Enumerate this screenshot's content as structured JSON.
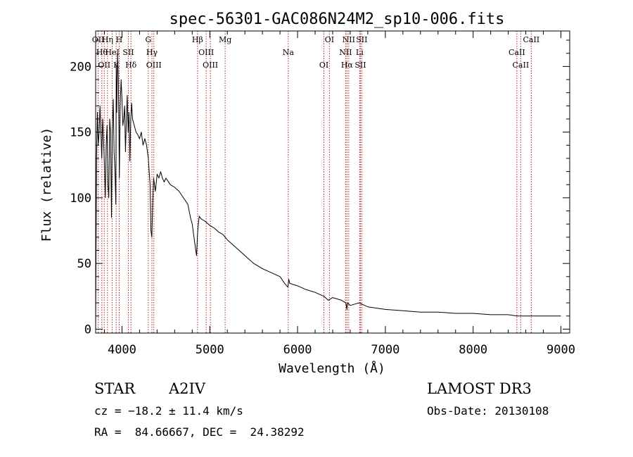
{
  "chart_data": {
    "type": "line",
    "title": "spec-56301-GAC086N24M2_sp10-006.fits",
    "xlabel": "Wavelength (Å)",
    "ylabel": "Flux (relative)",
    "xlim": [
      3700,
      9100
    ],
    "ylim": [
      -3,
      227
    ],
    "xticks": [
      4000,
      5000,
      6000,
      7000,
      8000,
      9000
    ],
    "yticks": [
      0,
      50,
      100,
      150,
      200
    ],
    "xtick_labels": [
      "4000",
      "5000",
      "6000",
      "7000",
      "8000",
      "9000"
    ],
    "ytick_labels": [
      "0",
      "50",
      "100",
      "150",
      "200"
    ],
    "series": [
      {
        "name": "spectrum",
        "x": [
          3700,
          3710,
          3720,
          3730,
          3740,
          3750,
          3760,
          3770,
          3780,
          3790,
          3800,
          3810,
          3820,
          3830,
          3840,
          3850,
          3860,
          3870,
          3880,
          3890,
          3900,
          3910,
          3920,
          3930,
          3935,
          3940,
          3950,
          3960,
          3970,
          3980,
          3990,
          4000,
          4010,
          4020,
          4030,
          4040,
          4050,
          4060,
          4070,
          4080,
          4090,
          4100,
          4110,
          4120,
          4140,
          4160,
          4180,
          4200,
          4220,
          4240,
          4260,
          4280,
          4300,
          4310,
          4320,
          4330,
          4340,
          4350,
          4360,
          4380,
          4400,
          4420,
          4440,
          4460,
          4480,
          4500,
          4550,
          4600,
          4650,
          4700,
          4750,
          4780,
          4800,
          4820,
          4840,
          4850,
          4860,
          4870,
          4880,
          4900,
          4950,
          5000,
          5050,
          5100,
          5150,
          5200,
          5300,
          5400,
          5500,
          5600,
          5700,
          5800,
          5850,
          5890,
          5900,
          5910,
          5950,
          6000,
          6100,
          6200,
          6300,
          6350,
          6400,
          6500,
          6550,
          6562,
          6570,
          6600,
          6700,
          6800,
          6900,
          7000,
          7200,
          7400,
          7600,
          7800,
          8000,
          8200,
          8400,
          8500,
          8600,
          8700,
          8800,
          8900,
          9000
        ],
        "y": [
          0,
          130,
          165,
          140,
          150,
          170,
          150,
          130,
          160,
          145,
          125,
          100,
          140,
          155,
          110,
          100,
          160,
          150,
          85,
          150,
          175,
          135,
          120,
          95,
          200,
          165,
          210,
          185,
          115,
          170,
          190,
          175,
          155,
          160,
          170,
          135,
          160,
          178,
          150,
          165,
          128,
          160,
          172,
          160,
          155,
          150,
          148,
          145,
          150,
          140,
          145,
          140,
          130,
          120,
          110,
          75,
          70,
          95,
          115,
          105,
          118,
          115,
          120,
          115,
          112,
          115,
          110,
          108,
          105,
          100,
          95,
          85,
          80,
          70,
          60,
          56,
          72,
          80,
          86,
          84,
          82,
          79,
          77,
          74,
          72,
          68,
          62,
          56,
          50,
          46,
          43,
          40,
          35,
          32,
          38,
          35,
          34,
          33,
          30,
          28,
          25,
          22,
          24,
          22,
          20,
          15,
          20,
          18,
          20,
          17,
          16,
          15,
          14,
          13,
          13,
          12,
          12,
          11,
          11,
          10,
          10,
          10,
          10,
          10,
          10
        ]
      }
    ],
    "line_ids": [
      {
        "wavelength": 3729,
        "label": "OII"
      },
      {
        "wavelength": 3771,
        "label": "Hθ"
      },
      {
        "wavelength": 3798,
        "label": "OII"
      },
      {
        "wavelength": 3835,
        "label": "Hη"
      },
      {
        "wavelength": 3889,
        "label": "HeI"
      },
      {
        "wavelength": 3934,
        "label": "K"
      },
      {
        "wavelength": 3968,
        "label": "H"
      },
      {
        "wavelength": 4072,
        "label": "SII"
      },
      {
        "wavelength": 4102,
        "label": "Hδ"
      },
      {
        "wavelength": 4300,
        "label": "G"
      },
      {
        "wavelength": 4341,
        "label": "Hγ"
      },
      {
        "wavelength": 4363,
        "label": "OIII"
      },
      {
        "wavelength": 4861,
        "label": "Hβ"
      },
      {
        "wavelength": 4959,
        "label": "OIII"
      },
      {
        "wavelength": 5007,
        "label": "OIII"
      },
      {
        "wavelength": 5175,
        "label": "Mg"
      },
      {
        "wavelength": 5894,
        "label": "Na"
      },
      {
        "wavelength": 6300,
        "label": "OI"
      },
      {
        "wavelength": 6363,
        "label": "OI"
      },
      {
        "wavelength": 6548,
        "label": "NII"
      },
      {
        "wavelength": 6563,
        "label": "Hα"
      },
      {
        "wavelength": 6583,
        "label": "NII"
      },
      {
        "wavelength": 6707,
        "label": "Li"
      },
      {
        "wavelength": 6716,
        "label": "SII"
      },
      {
        "wavelength": 6731,
        "label": "SII"
      },
      {
        "wavelength": 8498,
        "label": "CaII"
      },
      {
        "wavelength": 8542,
        "label": "CaII"
      },
      {
        "wavelength": 8662,
        "label": "CaII"
      }
    ]
  },
  "info": {
    "object_class": "STAR",
    "subclass": "A2IV",
    "survey": "LAMOST DR3",
    "cz": "cz = −18.2 ± 11.4 km/s",
    "obs_date": "Obs-Date: 20130108",
    "radec": "RA =  84.66667, DEC =  24.38292"
  },
  "colors": {
    "line_marker": "#b22222",
    "spectrum": "#000000",
    "axes": "#000000"
  }
}
